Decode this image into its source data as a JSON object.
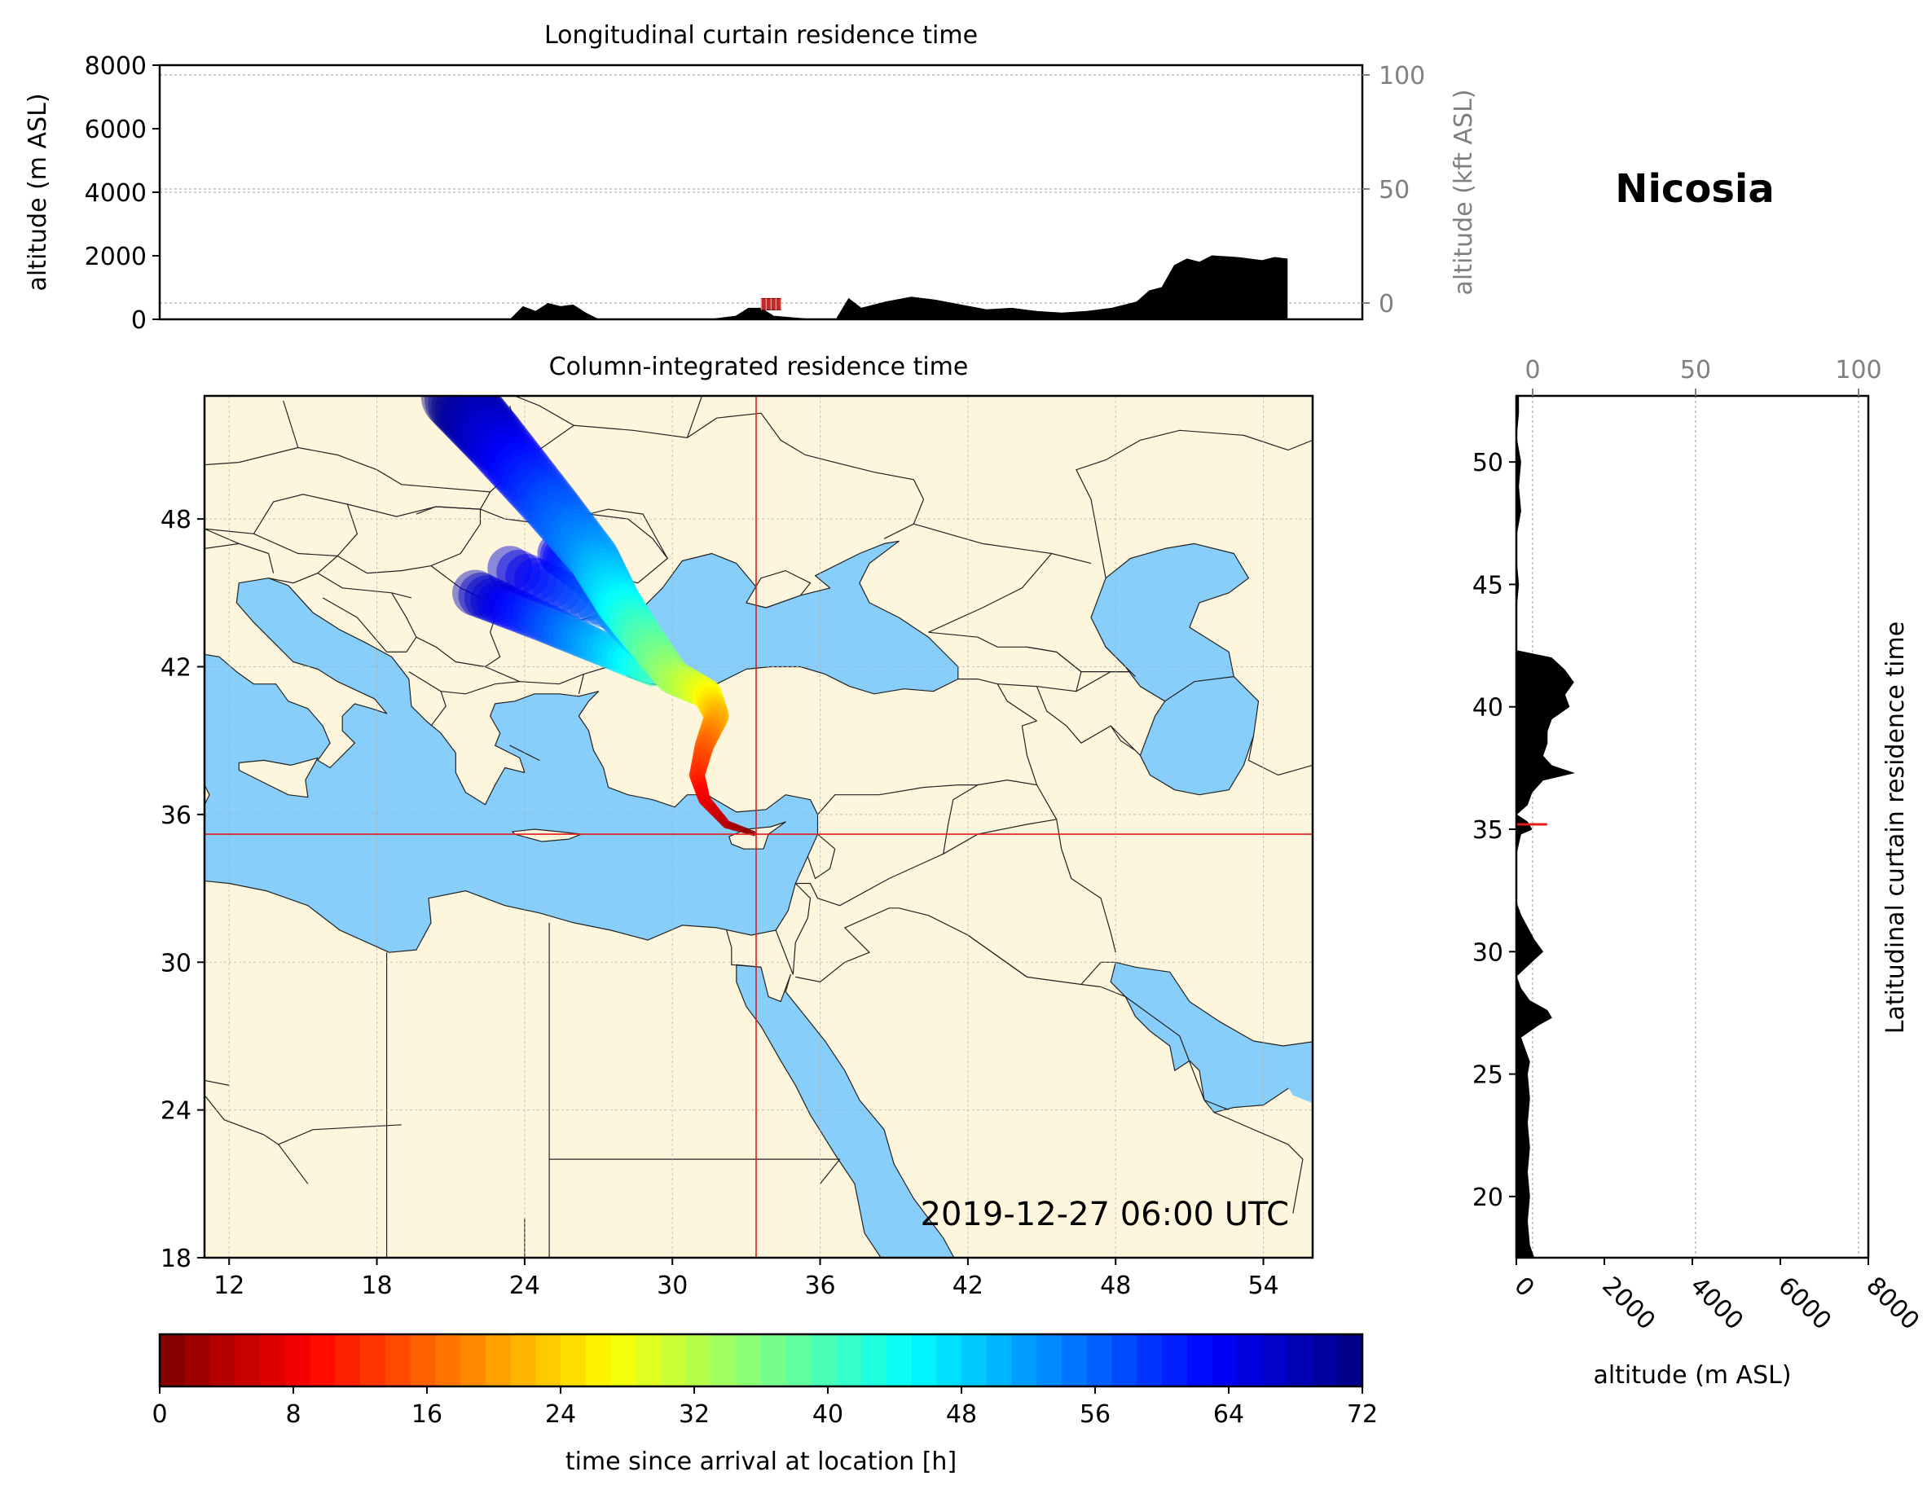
{
  "location": "Nicosia",
  "timestamp": "2019-12-27 06:00 UTC",
  "colors": {
    "land": "#fef6dc",
    "sea": "#87cefa",
    "marker": "#e41a1c",
    "terrain": "#000000",
    "border": "#222222",
    "axis_secondary": "#808080"
  },
  "chart_data": [
    {
      "type": "area",
      "title": "Longitudinal curtain residence time",
      "xlabel": "",
      "ylabel": "altitude (m ASL)",
      "ylabel_secondary": "altitude (kft ASL)",
      "ylim": [
        0,
        8000
      ],
      "yticks": [
        "0",
        "2000",
        "4000",
        "6000",
        "8000"
      ],
      "yticks_secondary": [
        "0",
        "50",
        "100"
      ],
      "yticks_secondary_values_kft": [
        0,
        50,
        100
      ],
      "xlim": [
        9,
        57
      ],
      "grid": true,
      "series": [
        {
          "x": [
            9,
            18,
            22,
            23,
            23.5,
            24,
            24.5,
            25,
            25.5,
            26,
            26.5,
            29,
            31,
            32,
            32.5,
            33,
            33.5,
            35,
            36,
            36.5,
            37,
            38,
            39,
            40,
            41,
            42,
            43,
            44,
            45,
            46,
            47,
            48,
            48.5,
            49,
            49.5,
            50,
            50.5,
            51,
            52,
            53,
            53.5,
            54
          ],
          "values": [
            0,
            0,
            0,
            0,
            400,
            250,
            500,
            400,
            450,
            200,
            0,
            0,
            0,
            100,
            350,
            350,
            100,
            0,
            0,
            650,
            350,
            550,
            700,
            600,
            450,
            300,
            350,
            250,
            200,
            250,
            350,
            550,
            900,
            1000,
            1700,
            1900,
            1800,
            2000,
            1950,
            1850,
            1950,
            1900
          ]
        }
      ],
      "marker": {
        "x": 33.4,
        "altitude_m": 400
      }
    },
    {
      "type": "heatmap",
      "title": "Column-integrated residence time",
      "xlim": [
        11,
        56
      ],
      "ylim": [
        18,
        53
      ],
      "xticks": [
        "12",
        "18",
        "24",
        "30",
        "36",
        "42",
        "48",
        "54"
      ],
      "yticks": [
        "18",
        "24",
        "30",
        "36",
        "42",
        "48"
      ],
      "grid": true,
      "crosshair": {
        "lon": 33.4,
        "lat": 35.2
      },
      "plume": [
        {
          "lon": 33.4,
          "lat": 35.2,
          "h": 0
        },
        {
          "lon": 32.2,
          "lat": 35.6,
          "h": 4
        },
        {
          "lon": 31.3,
          "lat": 36.6,
          "h": 8
        },
        {
          "lon": 31.0,
          "lat": 37.6,
          "h": 12
        },
        {
          "lon": 31.3,
          "lat": 38.8,
          "h": 16
        },
        {
          "lon": 31.8,
          "lat": 40.0,
          "h": 22
        },
        {
          "lon": 31.4,
          "lat": 40.9,
          "h": 28
        },
        {
          "lon": 30.0,
          "lat": 41.6,
          "h": 34
        },
        {
          "lon": 28.8,
          "lat": 43.2,
          "h": 40
        },
        {
          "lon": 27.8,
          "lat": 44.6,
          "h": 46
        },
        {
          "lon": 26.8,
          "lat": 46.4,
          "h": 52
        },
        {
          "lon": 25.0,
          "lat": 48.6,
          "h": 58
        },
        {
          "lon": 22.8,
          "lat": 51.2,
          "h": 66
        },
        {
          "lon": 21.2,
          "lat": 53.0,
          "h": 72
        }
      ],
      "plume_branches": [
        [
          {
            "lon": 29.4,
            "lat": 41.7,
            "h": 40
          },
          {
            "lon": 27.0,
            "lat": 42.8,
            "h": 50
          },
          {
            "lon": 24.8,
            "lat": 43.8,
            "h": 58
          },
          {
            "lon": 22.0,
            "lat": 45.0,
            "h": 68
          }
        ],
        [
          {
            "lon": 28.4,
            "lat": 43.6,
            "h": 48
          },
          {
            "lon": 26.6,
            "lat": 45.6,
            "h": 56
          },
          {
            "lon": 25.4,
            "lat": 46.6,
            "h": 64
          }
        ],
        [
          {
            "lon": 29.0,
            "lat": 42.6,
            "h": 44
          },
          {
            "lon": 27.6,
            "lat": 44.2,
            "h": 54
          },
          {
            "lon": 23.4,
            "lat": 46.0,
            "h": 66
          }
        ]
      ]
    },
    {
      "type": "area",
      "title": "Latitudinal curtain residence time",
      "xlabel": "altitude (m ASL)",
      "xlim": [
        0,
        8000
      ],
      "xticks": [
        "0",
        "2000",
        "4000",
        "6000",
        "8000"
      ],
      "xticks_secondary": [
        "0",
        "50",
        "100"
      ],
      "xticks_secondary_values_kft": [
        0,
        50,
        100
      ],
      "ylim": [
        17.5,
        52.7
      ],
      "yticks": [
        "20",
        "25",
        "30",
        "35",
        "40",
        "45",
        "50"
      ],
      "grid": true,
      "series": [
        {
          "lat": [
            17.5,
            18,
            19,
            20,
            21,
            22,
            23,
            24,
            25,
            25.5,
            26,
            26.5,
            27,
            27.3,
            27.6,
            28,
            28.5,
            29,
            29.5,
            30,
            30.5,
            31,
            31.5,
            32,
            33,
            34,
            34.8,
            35,
            35.3,
            35.6,
            36,
            36.5,
            37,
            37.3,
            37.6,
            38,
            38.5,
            39,
            39.5,
            40,
            40.5,
            41,
            41.5,
            42,
            42.3,
            43,
            44,
            45,
            46,
            47,
            48,
            49,
            50,
            51,
            52,
            52.7
          ],
          "values": [
            400,
            300,
            250,
            300,
            250,
            300,
            250,
            300,
            250,
            300,
            200,
            100,
            500,
            800,
            700,
            300,
            100,
            0,
            300,
            600,
            400,
            250,
            100,
            0,
            0,
            0,
            100,
            350,
            250,
            0,
            250,
            350,
            600,
            1300,
            800,
            600,
            700,
            700,
            800,
            1200,
            1100,
            1300,
            1100,
            800,
            0,
            0,
            0,
            50,
            0,
            0,
            100,
            50,
            100,
            0,
            50,
            50
          ]
        }
      ],
      "marker": {
        "lat": 35.2,
        "altitude_m": 400
      }
    },
    {
      "type": "bar",
      "title": "",
      "xlabel": "time since arrival at location [h]",
      "xlim": [
        0,
        72
      ],
      "xticks": [
        "0",
        "8",
        "16",
        "24",
        "32",
        "40",
        "48",
        "56",
        "64",
        "72"
      ],
      "colormap": "jet_r",
      "bins": 48
    }
  ]
}
